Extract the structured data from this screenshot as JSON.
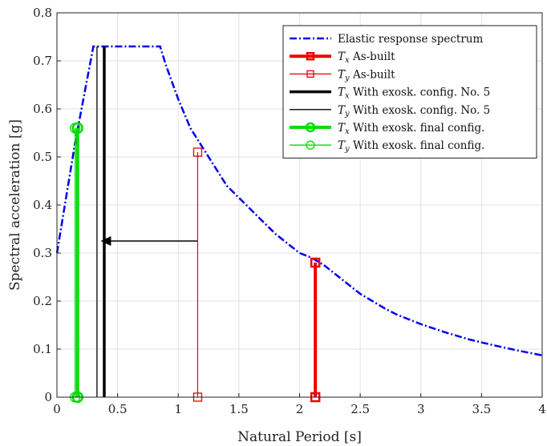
{
  "chart_data": {
    "type": "line",
    "xlabel": "Natural Period [s]",
    "ylabel": "Spectral acceleration [g]",
    "xlim": [
      0,
      4
    ],
    "ylim": [
      0,
      0.8
    ],
    "xticks": [
      0,
      0.5,
      1,
      1.5,
      2,
      2.5,
      3,
      3.5,
      4
    ],
    "yticks": [
      0,
      0.1,
      0.2,
      0.3,
      0.4,
      0.5,
      0.6,
      0.7,
      0.8
    ],
    "xtick_labels": [
      "0",
      "0.5",
      "1",
      "1.5",
      "2",
      "2.5",
      "3",
      "3.5",
      "4"
    ],
    "ytick_labels": [
      "0",
      "0.1",
      "0.2",
      "0.3",
      "0.4",
      "0.5",
      "0.6",
      "0.7",
      "0.8"
    ],
    "grid": true,
    "legend_position": "top-right",
    "spectrum": {
      "label": "Elastic response spectrum",
      "color": "#0000ee",
      "style": "dash-dot",
      "x": [
        0,
        0.15,
        0.3,
        0.4,
        0.5,
        0.6,
        0.7,
        0.85,
        0.9,
        1.0,
        1.1,
        1.2,
        1.3,
        1.4,
        1.5,
        1.6,
        1.7,
        1.8,
        1.9,
        2.0,
        2.1,
        2.2,
        2.3,
        2.4,
        2.5,
        2.6,
        2.7,
        2.8,
        2.9,
        3.0,
        3.2,
        3.4,
        3.6,
        3.8,
        4.0
      ],
      "y": [
        0.3,
        0.53,
        0.73,
        0.73,
        0.73,
        0.73,
        0.73,
        0.73,
        0.69,
        0.62,
        0.56,
        0.52,
        0.48,
        0.44,
        0.415,
        0.39,
        0.365,
        0.34,
        0.32,
        0.3,
        0.29,
        0.275,
        0.255,
        0.235,
        0.215,
        0.2,
        0.185,
        0.172,
        0.162,
        0.152,
        0.135,
        0.12,
        0.108,
        0.097,
        0.087
      ]
    },
    "series": [
      {
        "label": "T_x As-built",
        "sym": "T",
        "sub": "x",
        "text": "As-built",
        "color": "#ee0000",
        "width": 4,
        "marker": "square",
        "x": 2.13,
        "y": 0.28
      },
      {
        "label": "T_y As-built",
        "sym": "T",
        "sub": "y",
        "text": "As-built",
        "color": "#ee0000",
        "width": 1.2,
        "marker": "square",
        "x": 1.16,
        "y": 0.51
      },
      {
        "label": "T_x With exosk. config. No. 5",
        "sym": "T",
        "sub": "x",
        "text": "With exosk. config. No. 5",
        "color": "#000000",
        "width": 3.5,
        "marker": "none",
        "x": 0.39,
        "y": 0.73
      },
      {
        "label": "T_y With exosk. config. No. 5",
        "sym": "T",
        "sub": "y",
        "text": "With exosk. config. No. 5",
        "color": "#000000",
        "width": 1.3,
        "marker": "none",
        "x": 0.33,
        "y": 0.73
      },
      {
        "label": "T_x With exosk. final config.",
        "sym": "T",
        "sub": "x",
        "text": "With exosk. final config.",
        "color": "#00dd00",
        "width": 4,
        "marker": "circle",
        "x": 0.17,
        "y": 0.56
      },
      {
        "label": "T_y With exosk. final config.",
        "sym": "T",
        "sub": "y",
        "text": "With exosk. final config.",
        "color": "#00dd00",
        "width": 1.3,
        "marker": "circle",
        "x": 0.15,
        "y": 0.56
      }
    ],
    "annotations": [
      {
        "type": "arrow",
        "from": [
          1.16,
          0.325
        ],
        "to": [
          0.36,
          0.325
        ],
        "color": "#000000"
      }
    ]
  }
}
